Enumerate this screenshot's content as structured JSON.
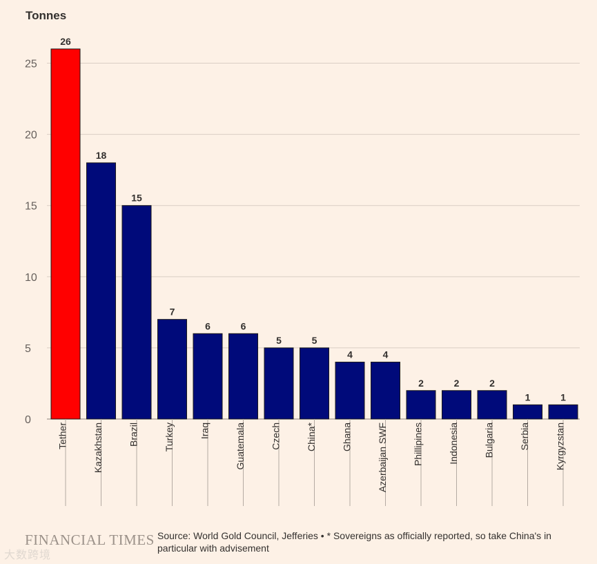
{
  "chart_data": {
    "type": "bar",
    "ylabel": "Tonnes",
    "ylim": [
      0,
      27.5
    ],
    "yticks": [
      0,
      5,
      10,
      15,
      20,
      25
    ],
    "grid": true,
    "categories": [
      "Tether",
      "Kazakhstan",
      "Brazil",
      "Turkey",
      "Iraq",
      "Guatemala",
      "Czech",
      "China*",
      "Ghana",
      "Azerbaijan SWF",
      "Phillipines",
      "Indonesia",
      "Bulgaria",
      "Serbia",
      "Kyrgyzstan"
    ],
    "values": [
      26,
      18,
      15,
      7,
      6,
      6,
      5,
      5,
      4,
      4,
      2,
      2,
      2,
      1,
      1
    ],
    "colors": [
      "#ff0000",
      "#000a7a",
      "#000a7a",
      "#000a7a",
      "#000a7a",
      "#000a7a",
      "#000a7a",
      "#000a7a",
      "#000a7a",
      "#000a7a",
      "#000a7a",
      "#000a7a",
      "#000a7a",
      "#000a7a",
      "#000a7a"
    ]
  },
  "footer": {
    "brand": "FINANCIAL TIMES",
    "source": "Source: World Gold Council, Jefferies • * Sovereigns as officially reported, so take China's in particular with advisement"
  },
  "watermark": "大数跨境"
}
